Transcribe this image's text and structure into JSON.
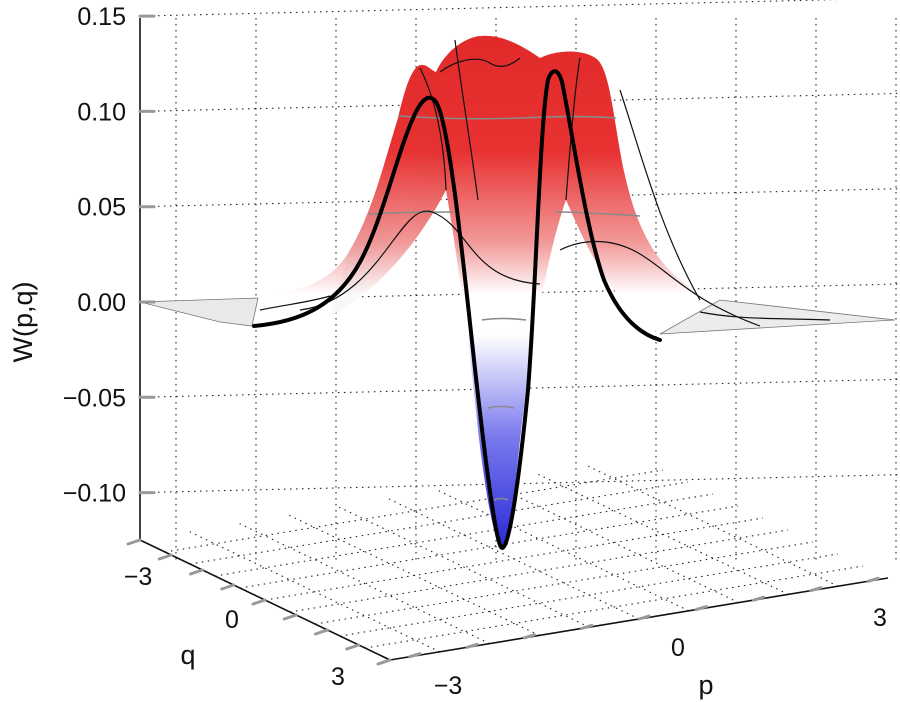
{
  "chart_data": {
    "type": "surface3d",
    "zlabel": "W(p,q)",
    "xlabel": "p",
    "ylabel": "q",
    "z_ticks": [
      "0.15",
      "0.10",
      "0.05",
      "0.00",
      "−0.05",
      "−0.10"
    ],
    "z_tick_values": [
      0.15,
      0.1,
      0.05,
      0.0,
      -0.05,
      -0.1
    ],
    "p_ticks": [
      "−3",
      "0",
      "3"
    ],
    "p_tick_values": [
      -3,
      0,
      3
    ],
    "q_ticks": [
      "−3",
      "0",
      "3"
    ],
    "q_tick_values": [
      -3,
      0,
      3
    ],
    "zlim": [
      -0.125,
      0.15
    ],
    "plim": [
      -5,
      5
    ],
    "qlim": [
      -5,
      5
    ],
    "grid": true,
    "min_value": -0.12,
    "max_value": 0.14,
    "colormap": [
      "#2a2ad6",
      "#ffffff",
      "#e83232"
    ],
    "highlight_curve": {
      "q": 0,
      "color": "#000000"
    }
  }
}
